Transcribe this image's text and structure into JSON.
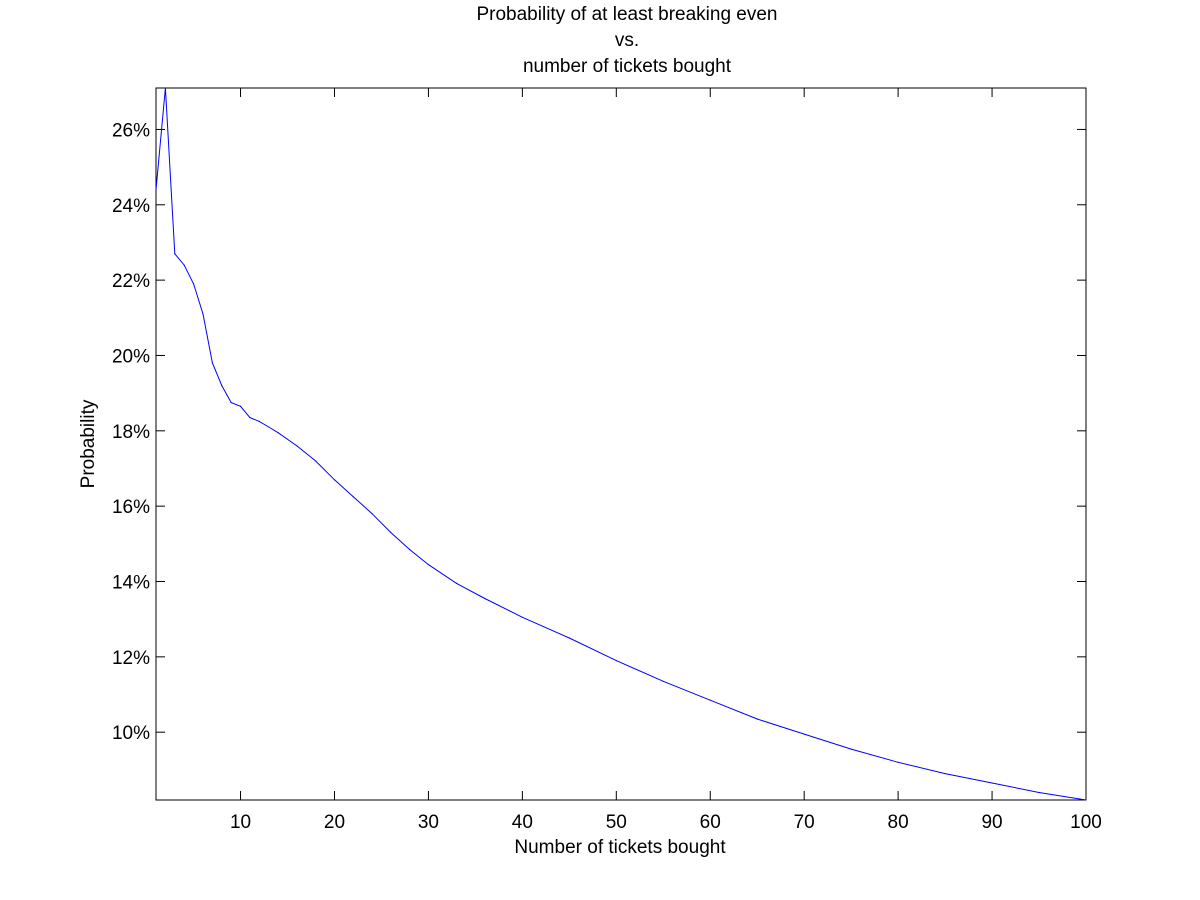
{
  "chart_data": {
    "type": "line",
    "title_lines": [
      "Probability of at least breaking even",
      "vs.",
      "number of tickets bought"
    ],
    "xlabel": "Number of tickets bought",
    "ylabel": "Probability",
    "xlim": [
      1,
      100
    ],
    "ylim": [
      8.2,
      27.1
    ],
    "y_unit": "%",
    "x_ticks": [
      10,
      20,
      30,
      40,
      50,
      60,
      70,
      80,
      90,
      100
    ],
    "y_ticks": [
      10,
      12,
      14,
      16,
      18,
      20,
      22,
      24,
      26
    ],
    "y_tick_labels": [
      "10%",
      "12%",
      "14%",
      "16%",
      "18%",
      "20%",
      "22%",
      "24%",
      "26%"
    ],
    "grid": false,
    "line_color": "#0000ff",
    "series": [
      {
        "x": [
          1,
          2,
          3,
          4,
          5,
          6,
          7,
          8,
          9,
          10,
          11,
          12,
          13,
          14,
          16,
          18,
          20,
          22,
          24,
          26,
          28,
          30,
          33,
          36,
          40,
          45,
          50,
          55,
          60,
          65,
          70,
          75,
          80,
          85,
          90,
          95,
          100
        ],
        "y": [
          24.4,
          27.1,
          22.7,
          22.4,
          21.9,
          21.1,
          19.8,
          19.2,
          18.75,
          18.65,
          18.35,
          18.25,
          18.1,
          17.95,
          17.6,
          17.2,
          16.7,
          16.25,
          15.8,
          15.3,
          14.85,
          14.45,
          13.95,
          13.55,
          13.05,
          12.5,
          11.9,
          11.35,
          10.85,
          10.35,
          9.95,
          9.55,
          9.2,
          8.9,
          8.65,
          8.4,
          8.2
        ]
      }
    ]
  }
}
